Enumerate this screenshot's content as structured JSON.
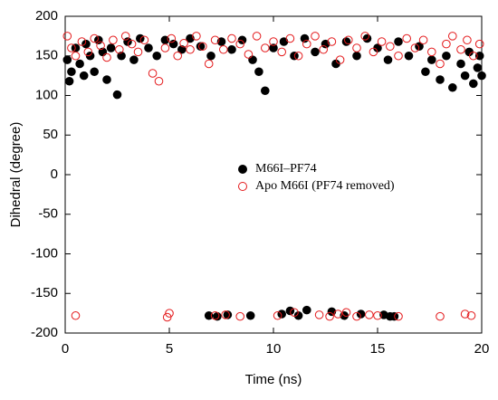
{
  "chart_data": {
    "type": "scatter",
    "x_label": "Time (ns)",
    "y_label": "Dihedral (degree)",
    "xlim": [
      0,
      20
    ],
    "xticks": [
      0,
      5,
      10,
      15,
      20
    ],
    "ylim": [
      -200,
      200
    ],
    "yticks": [
      -200,
      -150,
      -100,
      -50,
      0,
      50,
      100,
      150,
      200
    ],
    "series": [
      {
        "name": "M66I–PF74",
        "color": "#000000",
        "marker": "filled",
        "x": [
          0.1,
          0.2,
          0.3,
          0.5,
          0.7,
          0.9,
          1.0,
          1.2,
          1.4,
          1.6,
          1.8,
          2.0,
          2.2,
          2.5,
          2.7,
          3.0,
          3.3,
          3.6,
          4.0,
          4.4,
          4.8,
          5.2,
          5.6,
          6.0,
          6.5,
          7.0,
          7.5,
          8.0,
          8.5,
          9.0,
          9.3,
          9.6,
          10.0,
          10.5,
          11.0,
          11.5,
          12.0,
          12.5,
          13.0,
          13.5,
          14.0,
          14.5,
          15.0,
          15.5,
          16.0,
          16.5,
          17.0,
          17.3,
          17.6,
          18.0,
          18.3,
          18.6,
          19.0,
          19.2,
          19.4,
          19.6,
          19.8,
          19.9,
          20.0,
          6.9,
          7.3,
          7.8,
          8.9,
          10.4,
          10.8,
          11.2,
          11.6,
          12.8,
          13.4,
          14.2,
          15.3,
          15.6,
          15.8
        ],
        "values": [
          145,
          118,
          130,
          160,
          140,
          125,
          165,
          150,
          130,
          170,
          155,
          120,
          160,
          101,
          150,
          168,
          145,
          172,
          160,
          150,
          170,
          165,
          158,
          172,
          162,
          150,
          168,
          158,
          170,
          145,
          130,
          106,
          160,
          168,
          150,
          172,
          155,
          165,
          140,
          168,
          150,
          172,
          160,
          145,
          168,
          150,
          162,
          130,
          145,
          120,
          150,
          110,
          140,
          125,
          155,
          115,
          135,
          150,
          125,
          -178,
          -179,
          -177,
          -178,
          -176,
          -172,
          -178,
          -171,
          -173,
          -178,
          -176,
          -177,
          -179,
          -179
        ]
      },
      {
        "name": "Apo M66I (PF74 removed)",
        "color": "#e41a1c",
        "marker": "open",
        "x": [
          0.1,
          0.3,
          0.5,
          0.8,
          1.1,
          1.4,
          1.7,
          2.0,
          2.3,
          2.6,
          2.9,
          3.2,
          3.5,
          3.8,
          4.2,
          4.5,
          4.8,
          5.1,
          5.4,
          5.7,
          6.0,
          6.3,
          6.6,
          6.9,
          7.2,
          7.6,
          8.0,
          8.4,
          8.8,
          9.2,
          9.6,
          10.0,
          10.4,
          10.8,
          11.2,
          11.6,
          12.0,
          12.4,
          12.8,
          13.2,
          13.6,
          14.0,
          14.4,
          14.8,
          15.2,
          15.6,
          16.0,
          16.4,
          16.8,
          17.2,
          17.6,
          18.0,
          18.3,
          18.6,
          19.0,
          19.3,
          19.6,
          19.9,
          0.5,
          4.9,
          5.0,
          7.2,
          7.7,
          8.4,
          10.2,
          11.0,
          12.2,
          12.7,
          13.1,
          13.5,
          14.0,
          14.6,
          15.0,
          16.0,
          18.0,
          19.2,
          19.5
        ],
        "values": [
          175,
          160,
          150,
          168,
          155,
          172,
          163,
          148,
          170,
          158,
          175,
          165,
          155,
          170,
          128,
          118,
          160,
          172,
          150,
          166,
          158,
          175,
          162,
          140,
          170,
          158,
          172,
          165,
          152,
          175,
          160,
          168,
          155,
          172,
          150,
          165,
          175,
          158,
          168,
          145,
          170,
          160,
          175,
          155,
          168,
          162,
          150,
          172,
          160,
          170,
          155,
          140,
          165,
          175,
          158,
          170,
          150,
          165,
          -178,
          -180,
          -175,
          -178,
          -177,
          -179,
          -178,
          -174,
          -177,
          -179,
          -176,
          -174,
          -179,
          -177,
          -178,
          -179,
          -179,
          -176,
          -178
        ]
      }
    ]
  }
}
